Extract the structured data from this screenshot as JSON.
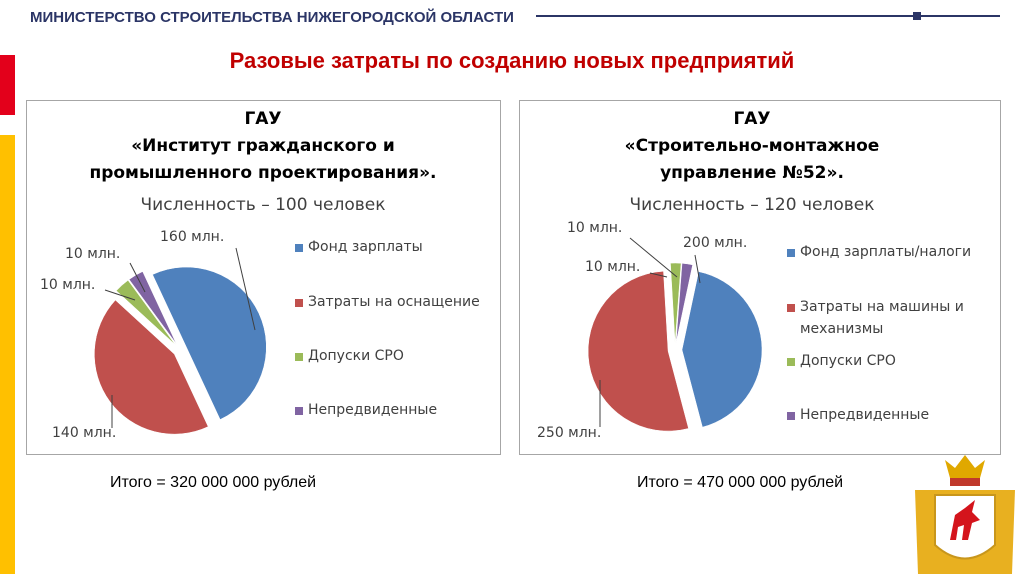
{
  "header": "МИНИСТЕРСТВО СТРОИТЕЛЬСТВА НИЖЕГОРОДСКОЙ ОБЛАСТИ",
  "title": "Разовые затраты по созданию новых предприятий",
  "chart_data": [
    {
      "type": "pie",
      "title": [
        "ГАУ",
        "«Институт гражданского и",
        "промышленного проектирования»."
      ],
      "subtitle": "Численность – 100 человек",
      "categories": [
        "Фонд зарплаты",
        "Затраты на оснащение",
        "Допуски СРО",
        "Непредвиденные"
      ],
      "values": [
        160,
        140,
        10,
        10
      ],
      "value_labels": [
        "160 млн.",
        "140 млн.",
        "10 млн.",
        "10 млн."
      ],
      "colors": [
        "#4f81bd",
        "#c0504d",
        "#9bbb59",
        "#8064a2"
      ],
      "total": "Итого = 320 000 000 рублей"
    },
    {
      "type": "pie",
      "title": [
        "ГАУ",
        "«Строительно-монтажное",
        "управление №52»."
      ],
      "subtitle": "Численность – 120 человек",
      "categories": [
        "Фонд зарплаты/налоги",
        "Затраты на машины и механизмы",
        "Допуски СРО",
        "Непредвиденные"
      ],
      "values": [
        200,
        250,
        10,
        10
      ],
      "value_labels": [
        "200 млн.",
        "250 млн.",
        "10 млн.",
        "10 млн."
      ],
      "colors": [
        "#4f81bd",
        "#c0504d",
        "#9bbb59",
        "#8064a2"
      ],
      "total": "Итого = 470 000 000 рублей"
    }
  ]
}
